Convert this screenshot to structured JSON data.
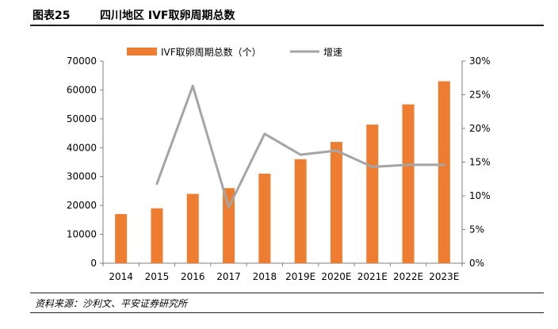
{
  "header": {
    "figure_no": "图表25",
    "title": "四川地区 IVF取卵周期总数"
  },
  "footer": {
    "source": "资料来源：沙利文、平安证券研究所"
  },
  "colors": {
    "bar": "#ED7D31",
    "line": "#A5A5A5",
    "axis": "#7F7F7F"
  },
  "chart_data": {
    "type": "bar",
    "categories": [
      "2014",
      "2015",
      "2016",
      "2017",
      "2018",
      "2019E",
      "2020E",
      "2021E",
      "2022E",
      "2023E"
    ],
    "series": [
      {
        "name": "IVF取卵周期总数（个）",
        "type": "bar",
        "axis": "left",
        "values": [
          17000,
          19000,
          24000,
          26000,
          31000,
          36000,
          42000,
          48000,
          55000,
          63000
        ]
      },
      {
        "name": "增速",
        "type": "line",
        "axis": "right",
        "values": [
          null,
          11.8,
          26.3,
          8.3,
          19.2,
          16.1,
          16.7,
          14.3,
          14.6,
          14.6
        ]
      }
    ],
    "y_left": {
      "min": 0,
      "max": 70000,
      "ticks": [
        "0",
        "10000",
        "20000",
        "30000",
        "40000",
        "50000",
        "60000",
        "70000"
      ]
    },
    "y_right": {
      "min": 0,
      "max": 30,
      "ticks": [
        "0%",
        "5%",
        "10%",
        "15%",
        "20%",
        "25%",
        "30%"
      ]
    },
    "legend_position": "top",
    "grid": false
  }
}
